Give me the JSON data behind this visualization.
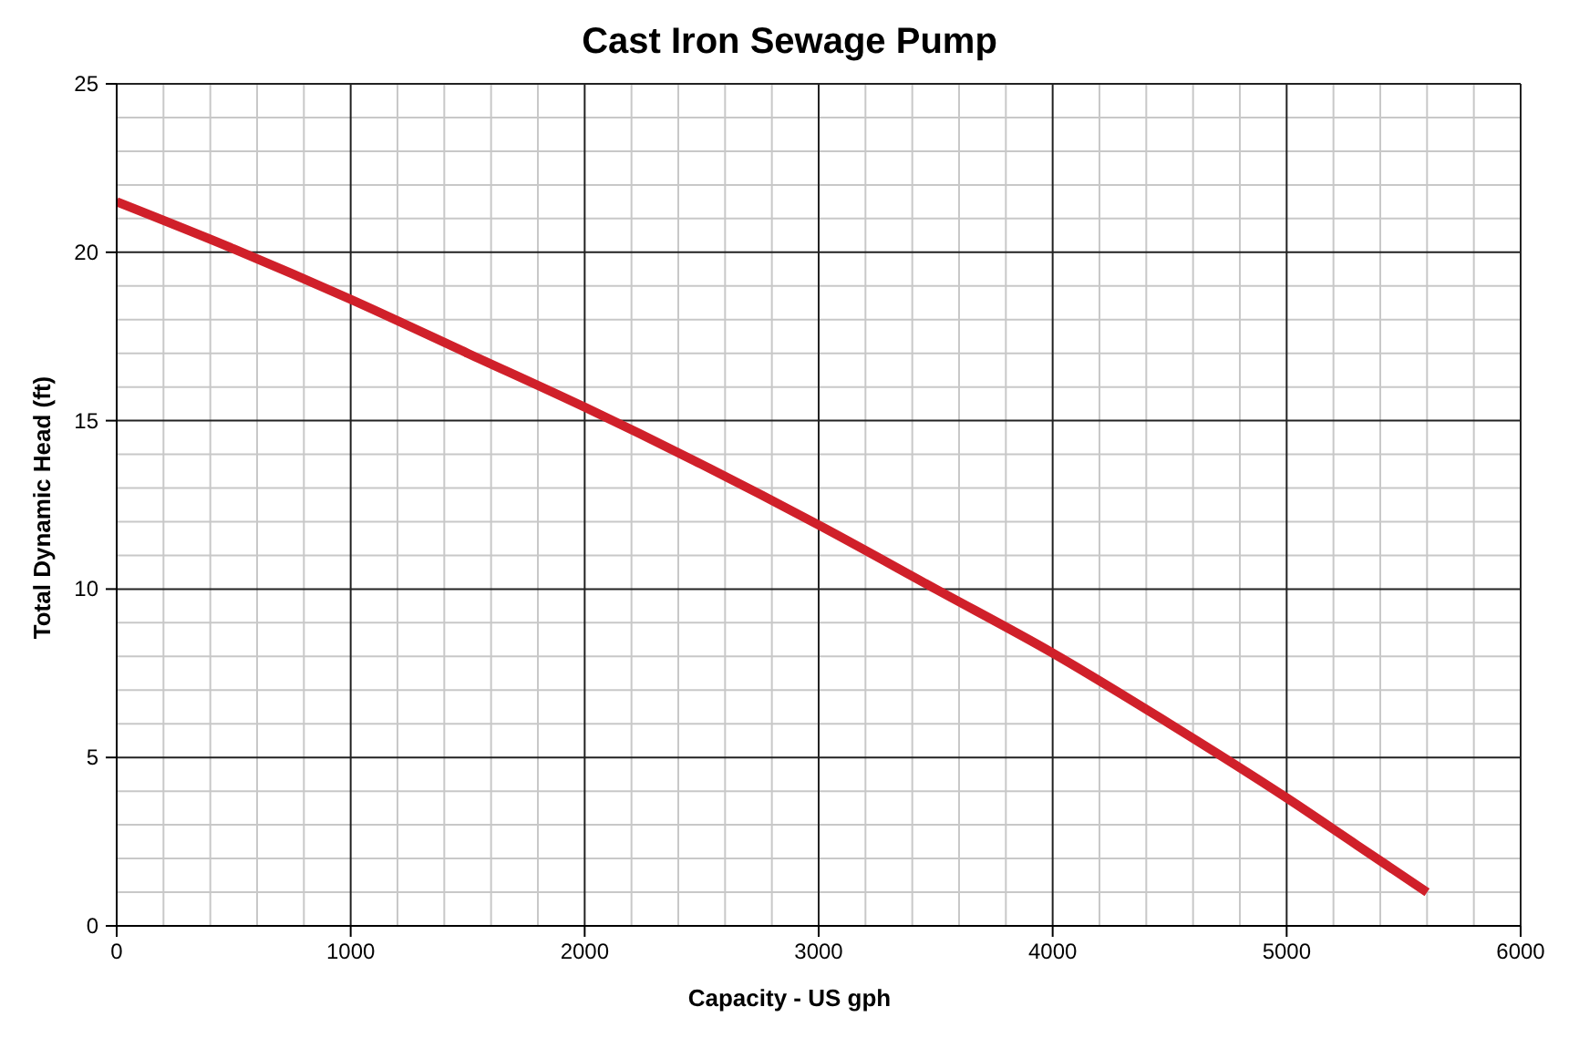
{
  "chart_data": {
    "type": "line",
    "title": "Cast Iron Sewage Pump",
    "xlabel": "Capacity - US gph",
    "ylabel": "Total Dynamic Head (ft)",
    "x": [
      0,
      500,
      1000,
      1500,
      2000,
      2500,
      3000,
      3500,
      4000,
      4500,
      5000,
      5300,
      5600
    ],
    "series": [
      {
        "color": "#d0202a",
        "values": [
          21.5,
          20.1,
          18.6,
          17.0,
          15.4,
          13.7,
          11.9,
          10.0,
          8.1,
          6.0,
          3.8,
          2.4,
          1.0
        ]
      }
    ],
    "xlim": [
      0,
      6000
    ],
    "ylim": [
      0,
      25
    ],
    "xticks": [
      0,
      {
        "value": 200,
        "label": null
      },
      {
        "value": 400,
        "label": null
      },
      {
        "value": 600,
        "label": null
      },
      {
        "value": 800,
        "label": null
      },
      1000,
      {
        "value": 1200,
        "label": null
      },
      {
        "value": 1400,
        "label": null
      },
      {
        "value": 1600,
        "label": null
      },
      {
        "value": 1800,
        "label": null
      },
      2000,
      {
        "value": 2200,
        "label": null
      },
      {
        "value": 2400,
        "label": null
      },
      {
        "value": 2600,
        "label": null
      },
      {
        "value": 2800,
        "label": null
      },
      3000,
      {
        "value": 3200,
        "label": null
      },
      {
        "value": 3400,
        "label": null
      },
      {
        "value": 3600,
        "label": null
      },
      {
        "value": 3800,
        "label": null
      },
      4000,
      {
        "value": 4200,
        "label": null
      },
      {
        "value": 4400,
        "label": null
      },
      {
        "value": 4600,
        "label": null
      },
      {
        "value": 4800,
        "label": null
      },
      5000,
      {
        "value": 5200,
        "label": null
      },
      {
        "value": 5400,
        "label": null
      },
      {
        "value": 5600,
        "label": null
      },
      {
        "value": 5800,
        "label": null
      },
      6000
    ],
    "yticks": [
      0,
      {
        "value": 1,
        "label": null
      },
      {
        "value": 2,
        "label": null
      },
      {
        "value": 3,
        "label": null
      },
      {
        "value": 4,
        "label": null
      },
      5,
      {
        "value": 6,
        "label": null
      },
      {
        "value": 7,
        "label": null
      },
      {
        "value": 8,
        "label": null
      },
      {
        "value": 9,
        "label": null
      },
      10,
      {
        "value": 11,
        "label": null
      },
      {
        "value": 12,
        "label": null
      },
      {
        "value": 13,
        "label": null
      },
      {
        "value": 14,
        "label": null
      },
      15,
      {
        "value": 16,
        "label": null
      },
      {
        "value": 17,
        "label": null
      },
      {
        "value": 18,
        "label": null
      },
      {
        "value": 19,
        "label": null
      },
      20,
      {
        "value": 21,
        "label": null
      },
      {
        "value": 22,
        "label": null
      },
      {
        "value": 23,
        "label": null
      },
      {
        "value": 24,
        "label": null
      },
      25
    ],
    "grid": true,
    "legend": false,
    "marker": "none",
    "line_style": "solid"
  }
}
